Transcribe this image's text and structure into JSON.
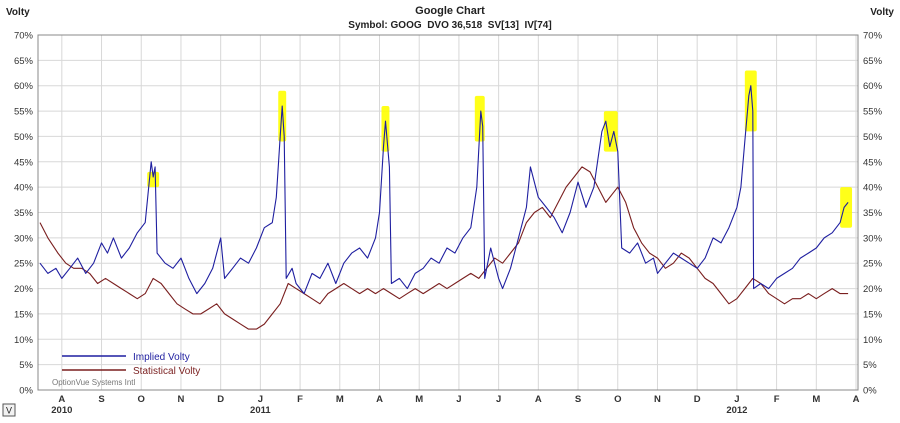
{
  "chart_data": {
    "type": "line",
    "title": "Google Chart",
    "subtitle": "Symbol: GOOG  DVO 36,518  SV[13]  IV[74]",
    "ylabel_left": "Volty",
    "ylabel_right": "Volty",
    "ylim": [
      0,
      70
    ],
    "y_ticks": [
      "0%",
      "5%",
      "10%",
      "15%",
      "20%",
      "25%",
      "30%",
      "35%",
      "40%",
      "45%",
      "50%",
      "55%",
      "60%",
      "65%",
      "70%"
    ],
    "grid": true,
    "legend_position": "bottom-left",
    "watermark": "OptionVue Systems Intl",
    "corner_button": "V",
    "colors": {
      "implied": "#1f1fa0",
      "statistical": "#7a1f1f",
      "highlight": "#ffff00",
      "grid": "#d8d8d8"
    },
    "x_months": [
      {
        "m": "A",
        "x": 0.0
      },
      {
        "m": "S",
        "x": 1.0
      },
      {
        "m": "O",
        "x": 2.0
      },
      {
        "m": "N",
        "x": 3.0
      },
      {
        "m": "D",
        "x": 4.0
      },
      {
        "m": "J",
        "x": 5.0
      },
      {
        "m": "F",
        "x": 6.0
      },
      {
        "m": "M",
        "x": 7.0
      },
      {
        "m": "A",
        "x": 8.0
      },
      {
        "m": "M",
        "x": 9.0
      },
      {
        "m": "J",
        "x": 10.0
      },
      {
        "m": "J",
        "x": 11.0
      },
      {
        "m": "A",
        "x": 12.0
      },
      {
        "m": "S",
        "x": 13.0
      },
      {
        "m": "O",
        "x": 14.0
      },
      {
        "m": "N",
        "x": 15.0
      },
      {
        "m": "D",
        "x": 16.0
      },
      {
        "m": "J",
        "x": 17.0
      },
      {
        "m": "F",
        "x": 18.0
      },
      {
        "m": "M",
        "x": 19.0
      },
      {
        "m": "A",
        "x": 20.0
      }
    ],
    "year_labels": [
      {
        "year": "2010",
        "x": 0.0
      },
      {
        "year": "2011",
        "x": 5.0
      },
      {
        "year": "2012",
        "x": 17.0
      }
    ],
    "series": [
      {
        "name": "Implied Volty",
        "points": [
          [
            -0.55,
            25
          ],
          [
            -0.35,
            23
          ],
          [
            -0.15,
            24
          ],
          [
            0.0,
            22
          ],
          [
            0.2,
            24
          ],
          [
            0.4,
            26
          ],
          [
            0.6,
            23
          ],
          [
            0.8,
            25
          ],
          [
            1.0,
            29
          ],
          [
            1.15,
            27
          ],
          [
            1.3,
            30
          ],
          [
            1.5,
            26
          ],
          [
            1.7,
            28
          ],
          [
            1.9,
            31
          ],
          [
            2.1,
            33
          ],
          [
            2.2,
            41
          ],
          [
            2.25,
            45
          ],
          [
            2.3,
            42
          ],
          [
            2.35,
            44
          ],
          [
            2.4,
            27
          ],
          [
            2.6,
            25
          ],
          [
            2.8,
            24
          ],
          [
            3.0,
            26
          ],
          [
            3.2,
            22
          ],
          [
            3.4,
            19
          ],
          [
            3.6,
            21
          ],
          [
            3.8,
            24
          ],
          [
            4.0,
            30
          ],
          [
            4.1,
            22
          ],
          [
            4.3,
            24
          ],
          [
            4.5,
            26
          ],
          [
            4.7,
            25
          ],
          [
            4.9,
            28
          ],
          [
            5.1,
            32
          ],
          [
            5.3,
            33
          ],
          [
            5.4,
            38
          ],
          [
            5.5,
            50
          ],
          [
            5.55,
            56
          ],
          [
            5.6,
            50
          ],
          [
            5.65,
            22
          ],
          [
            5.8,
            24
          ],
          [
            5.9,
            21
          ],
          [
            6.1,
            19
          ],
          [
            6.3,
            23
          ],
          [
            6.5,
            22
          ],
          [
            6.7,
            25
          ],
          [
            6.9,
            21
          ],
          [
            7.1,
            25
          ],
          [
            7.3,
            27
          ],
          [
            7.5,
            28
          ],
          [
            7.7,
            26
          ],
          [
            7.9,
            30
          ],
          [
            8.0,
            35
          ],
          [
            8.1,
            48
          ],
          [
            8.15,
            53
          ],
          [
            8.25,
            44
          ],
          [
            8.3,
            21
          ],
          [
            8.5,
            22
          ],
          [
            8.7,
            20
          ],
          [
            8.9,
            23
          ],
          [
            9.1,
            24
          ],
          [
            9.3,
            26
          ],
          [
            9.5,
            25
          ],
          [
            9.7,
            28
          ],
          [
            9.9,
            27
          ],
          [
            10.1,
            30
          ],
          [
            10.3,
            32
          ],
          [
            10.45,
            40
          ],
          [
            10.55,
            55
          ],
          [
            10.6,
            52
          ],
          [
            10.65,
            22
          ],
          [
            10.8,
            28
          ],
          [
            11.0,
            22
          ],
          [
            11.1,
            20
          ],
          [
            11.3,
            24
          ],
          [
            11.5,
            30
          ],
          [
            11.7,
            36
          ],
          [
            11.8,
            44
          ],
          [
            12.0,
            38
          ],
          [
            12.2,
            36
          ],
          [
            12.4,
            34
          ],
          [
            12.6,
            31
          ],
          [
            12.8,
            35
          ],
          [
            13.0,
            41
          ],
          [
            13.2,
            36
          ],
          [
            13.4,
            40
          ],
          [
            13.6,
            51
          ],
          [
            13.7,
            53
          ],
          [
            13.8,
            48
          ],
          [
            13.9,
            51
          ],
          [
            14.0,
            47
          ],
          [
            14.1,
            28
          ],
          [
            14.3,
            27
          ],
          [
            14.5,
            29
          ],
          [
            14.7,
            25
          ],
          [
            14.9,
            26
          ],
          [
            15.0,
            23
          ],
          [
            15.2,
            25
          ],
          [
            15.4,
            27
          ],
          [
            15.6,
            26
          ],
          [
            15.8,
            25
          ],
          [
            16.0,
            24
          ],
          [
            16.2,
            26
          ],
          [
            16.4,
            30
          ],
          [
            16.6,
            29
          ],
          [
            16.8,
            32
          ],
          [
            17.0,
            36
          ],
          [
            17.1,
            40
          ],
          [
            17.2,
            49
          ],
          [
            17.3,
            58
          ],
          [
            17.35,
            60
          ],
          [
            17.4,
            55
          ],
          [
            17.42,
            20
          ],
          [
            17.6,
            21
          ],
          [
            17.8,
            20
          ],
          [
            18.0,
            22
          ],
          [
            18.2,
            23
          ],
          [
            18.4,
            24
          ],
          [
            18.6,
            26
          ],
          [
            18.8,
            27
          ],
          [
            19.0,
            28
          ],
          [
            19.2,
            30
          ],
          [
            19.4,
            31
          ],
          [
            19.6,
            33
          ],
          [
            19.7,
            36
          ],
          [
            19.8,
            37
          ]
        ]
      },
      {
        "name": "Statistical Volty",
        "points": [
          [
            -0.55,
            33
          ],
          [
            -0.35,
            30
          ],
          [
            -0.1,
            27
          ],
          [
            0.1,
            25
          ],
          [
            0.3,
            24
          ],
          [
            0.5,
            24
          ],
          [
            0.7,
            23
          ],
          [
            0.9,
            21
          ],
          [
            1.1,
            22
          ],
          [
            1.3,
            21
          ],
          [
            1.5,
            20
          ],
          [
            1.7,
            19
          ],
          [
            1.9,
            18
          ],
          [
            2.1,
            19
          ],
          [
            2.3,
            22
          ],
          [
            2.5,
            21
          ],
          [
            2.7,
            19
          ],
          [
            2.9,
            17
          ],
          [
            3.1,
            16
          ],
          [
            3.3,
            15
          ],
          [
            3.5,
            15
          ],
          [
            3.7,
            16
          ],
          [
            3.9,
            17
          ],
          [
            4.1,
            15
          ],
          [
            4.3,
            14
          ],
          [
            4.5,
            13
          ],
          [
            4.7,
            12
          ],
          [
            4.9,
            12
          ],
          [
            5.1,
            13
          ],
          [
            5.3,
            15
          ],
          [
            5.5,
            17
          ],
          [
            5.7,
            21
          ],
          [
            5.9,
            20
          ],
          [
            6.1,
            19
          ],
          [
            6.3,
            18
          ],
          [
            6.5,
            17
          ],
          [
            6.7,
            19
          ],
          [
            6.9,
            20
          ],
          [
            7.1,
            21
          ],
          [
            7.3,
            20
          ],
          [
            7.5,
            19
          ],
          [
            7.7,
            20
          ],
          [
            7.9,
            19
          ],
          [
            8.1,
            20
          ],
          [
            8.3,
            19
          ],
          [
            8.5,
            18
          ],
          [
            8.7,
            19
          ],
          [
            8.9,
            20
          ],
          [
            9.1,
            19
          ],
          [
            9.3,
            20
          ],
          [
            9.5,
            21
          ],
          [
            9.7,
            20
          ],
          [
            9.9,
            21
          ],
          [
            10.1,
            22
          ],
          [
            10.3,
            23
          ],
          [
            10.5,
            22
          ],
          [
            10.7,
            24
          ],
          [
            10.9,
            26
          ],
          [
            11.1,
            25
          ],
          [
            11.3,
            27
          ],
          [
            11.5,
            29
          ],
          [
            11.7,
            33
          ],
          [
            11.9,
            35
          ],
          [
            12.1,
            36
          ],
          [
            12.3,
            34
          ],
          [
            12.5,
            37
          ],
          [
            12.7,
            40
          ],
          [
            12.9,
            42
          ],
          [
            13.1,
            44
          ],
          [
            13.3,
            43
          ],
          [
            13.5,
            40
          ],
          [
            13.7,
            37
          ],
          [
            13.9,
            39
          ],
          [
            14.0,
            40
          ],
          [
            14.2,
            37
          ],
          [
            14.4,
            32
          ],
          [
            14.6,
            29
          ],
          [
            14.8,
            27
          ],
          [
            15.0,
            26
          ],
          [
            15.2,
            24
          ],
          [
            15.4,
            25
          ],
          [
            15.6,
            27
          ],
          [
            15.8,
            26
          ],
          [
            16.0,
            24
          ],
          [
            16.2,
            22
          ],
          [
            16.4,
            21
          ],
          [
            16.6,
            19
          ],
          [
            16.8,
            17
          ],
          [
            17.0,
            18
          ],
          [
            17.2,
            20
          ],
          [
            17.4,
            22
          ],
          [
            17.6,
            21
          ],
          [
            17.8,
            19
          ],
          [
            18.0,
            18
          ],
          [
            18.2,
            17
          ],
          [
            18.4,
            18
          ],
          [
            18.6,
            18
          ],
          [
            18.8,
            19
          ],
          [
            19.0,
            18
          ],
          [
            19.2,
            19
          ],
          [
            19.4,
            20
          ],
          [
            19.6,
            19
          ],
          [
            19.8,
            19
          ]
        ]
      }
    ],
    "highlights": [
      {
        "x0": 2.15,
        "x1": 2.45,
        "y0": 40,
        "y1": 43
      },
      {
        "x0": 5.45,
        "x1": 5.65,
        "y0": 49,
        "y1": 59
      },
      {
        "x0": 8.05,
        "x1": 8.25,
        "y0": 47,
        "y1": 56
      },
      {
        "x0": 10.4,
        "x1": 10.65,
        "y0": 49,
        "y1": 58
      },
      {
        "x0": 13.65,
        "x1": 14.0,
        "y0": 47,
        "y1": 55
      },
      {
        "x0": 17.2,
        "x1": 17.5,
        "y0": 51,
        "y1": 63
      },
      {
        "x0": 19.6,
        "x1": 19.9,
        "y0": 32,
        "y1": 40
      }
    ]
  }
}
